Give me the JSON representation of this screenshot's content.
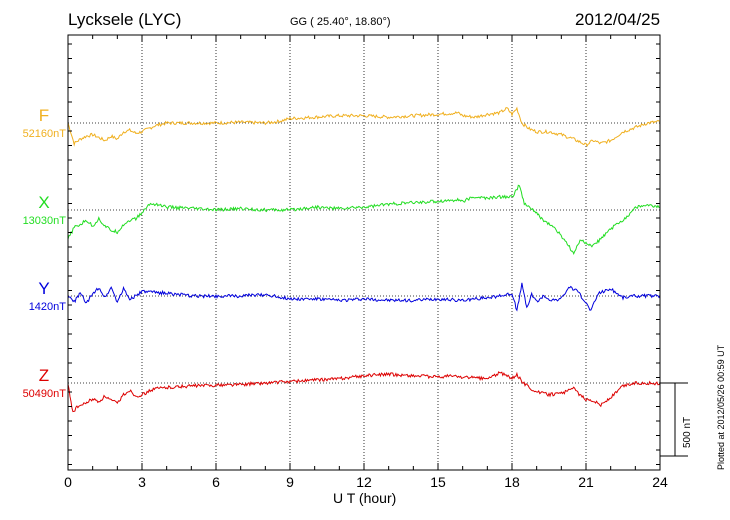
{
  "header": {
    "station": "Lycksele (LYC)",
    "coords": "GG ( 25.40°,  18.80°)",
    "date": "2012/04/25"
  },
  "footer": {
    "plotted": "Plotted at 2012/05/26 00:59 UT",
    "scale": "500 nT"
  },
  "colors": {
    "F": "#f0b020",
    "X": "#22dd22",
    "Y": "#0000dd",
    "Z": "#dd0000"
  },
  "chart_data": {
    "type": "line",
    "title": "Lycksele (LYC)",
    "xlabel": "U T (hour)",
    "ylabel": "",
    "x_ticks": [
      "0",
      "3",
      "6",
      "9",
      "12",
      "15",
      "18",
      "21",
      "24"
    ],
    "xlim": [
      0,
      24
    ],
    "scale_bar_nT": 500,
    "grid": true,
    "series": [
      {
        "name": "F",
        "baseline_label": "52160nT",
        "x": [
          0,
          0.25,
          0.5,
          0.75,
          1,
          1.25,
          1.5,
          1.75,
          2,
          2.25,
          2.5,
          2.75,
          3,
          3.5,
          4,
          4.5,
          5,
          6,
          7,
          8,
          8.5,
          9,
          10,
          11,
          12,
          13,
          14,
          15,
          15.8,
          16,
          16.5,
          17,
          17.5,
          17.8,
          18,
          18.2,
          18.4,
          18.7,
          19,
          19.5,
          20,
          20.5,
          21,
          21.3,
          21.6,
          22,
          22.5,
          23,
          23.5,
          24
        ],
        "y": [
          0,
          -140,
          -110,
          -90,
          -80,
          -100,
          -120,
          -90,
          -110,
          -60,
          -50,
          -70,
          -60,
          -20,
          0,
          0,
          0,
          0,
          5,
          0,
          10,
          30,
          40,
          50,
          50,
          40,
          50,
          60,
          70,
          50,
          40,
          60,
          70,
          100,
          60,
          100,
          0,
          -40,
          -60,
          -60,
          -80,
          -110,
          -150,
          -120,
          -140,
          -120,
          -60,
          -30,
          0,
          10
        ]
      },
      {
        "name": "X",
        "baseline_label": "13030nT",
        "x": [
          0,
          0.25,
          0.5,
          0.75,
          1,
          1.25,
          1.5,
          1.75,
          2,
          2.25,
          2.5,
          2.75,
          3,
          3.3,
          3.6,
          4,
          5,
          6,
          7,
          8,
          9,
          10,
          11,
          12,
          13,
          14,
          15,
          15.8,
          16,
          16.5,
          17,
          17.5,
          18,
          18.3,
          18.5,
          18.8,
          19.2,
          19.7,
          20.2,
          20.5,
          20.8,
          21.2,
          21.6,
          22,
          22.4,
          22.7,
          23,
          23.5,
          24
        ],
        "y": [
          -200,
          -120,
          -100,
          -70,
          -110,
          -60,
          -110,
          -140,
          -150,
          -100,
          -70,
          -60,
          -20,
          40,
          40,
          20,
          10,
          0,
          10,
          0,
          0,
          20,
          10,
          20,
          40,
          50,
          60,
          70,
          60,
          90,
          80,
          90,
          90,
          170,
          40,
          10,
          -60,
          -120,
          -220,
          -300,
          -200,
          -250,
          -200,
          -130,
          -80,
          -40,
          20,
          30,
          20
        ]
      },
      {
        "name": "Y",
        "baseline_label": "1420nT",
        "x": [
          0,
          0.25,
          0.5,
          0.75,
          1,
          1.25,
          1.5,
          1.75,
          2,
          2.25,
          2.5,
          2.75,
          3,
          4,
          5,
          6,
          7,
          8,
          9,
          10,
          11,
          12,
          13,
          14,
          15,
          16,
          17,
          17.5,
          18,
          18.2,
          18.4,
          18.6,
          18.8,
          19,
          19.3,
          19.6,
          20,
          20.3,
          20.6,
          20.9,
          21.2,
          21.5,
          22,
          22.5,
          23,
          23.5,
          24
        ],
        "y": [
          0,
          -40,
          20,
          -50,
          10,
          60,
          -10,
          60,
          -40,
          50,
          -20,
          0,
          30,
          20,
          0,
          0,
          0,
          10,
          -20,
          -20,
          -30,
          -20,
          -30,
          -30,
          -20,
          -30,
          -10,
          0,
          20,
          -100,
          80,
          -80,
          10,
          -40,
          0,
          -30,
          -20,
          60,
          40,
          -20,
          -100,
          20,
          50,
          -10,
          0,
          0,
          0
        ]
      },
      {
        "name": "Z",
        "baseline_label": "50490nT",
        "x": [
          0,
          0.2,
          0.4,
          0.6,
          0.8,
          1,
          1.25,
          1.5,
          1.75,
          2,
          2.25,
          2.5,
          2.75,
          3,
          3.5,
          4,
          5,
          6,
          7,
          8,
          9,
          10,
          11,
          12,
          13,
          14,
          15,
          15.5,
          16,
          17,
          17.5,
          17.8,
          18,
          18.2,
          18.4,
          18.7,
          19,
          19.5,
          20,
          20.5,
          20.8,
          21,
          21.3,
          21.6,
          22,
          22.5,
          23,
          23.5,
          24
        ],
        "y": [
          -10,
          -200,
          -160,
          -150,
          -130,
          -110,
          -130,
          -90,
          -120,
          -140,
          -80,
          -50,
          -90,
          -80,
          -40,
          -30,
          -20,
          -15,
          -10,
          0,
          10,
          20,
          30,
          50,
          60,
          50,
          40,
          50,
          40,
          30,
          70,
          50,
          30,
          60,
          10,
          -30,
          -60,
          -80,
          -70,
          -40,
          -90,
          -110,
          -120,
          -150,
          -100,
          -20,
          0,
          0,
          -5
        ]
      }
    ]
  }
}
